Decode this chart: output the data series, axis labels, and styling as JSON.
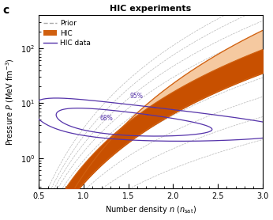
{
  "title": "HIC experiments",
  "panel_label": "c",
  "xlabel": "Number density $n$ ($n_{\\mathrm{sat}}$)",
  "ylabel": "Pressure $P$ (MeV fm$^{-3}$)",
  "xlim": [
    0.5,
    3.0
  ],
  "ylim_log": [
    0.28,
    400
  ],
  "xticks": [
    0.5,
    1.0,
    1.5,
    2.0,
    2.5,
    3.0
  ],
  "ytick_vals": [
    1,
    10,
    100
  ],
  "ytick_labels": [
    "10$^0$",
    "10$^1$",
    "10$^2$"
  ],
  "prior_color": "#aaaaaa",
  "hic_band_95_color": "#f5c9a0",
  "hic_band_68_color": "#c85000",
  "hic_line_color": "#d06010",
  "hic_data_color": "#5533aa",
  "label_prior": "Prior",
  "label_hic": "HIC",
  "label_hic_data": "HIC data",
  "annotation_95": "95%",
  "annotation_68": "68%",
  "background_color": "#ffffff"
}
